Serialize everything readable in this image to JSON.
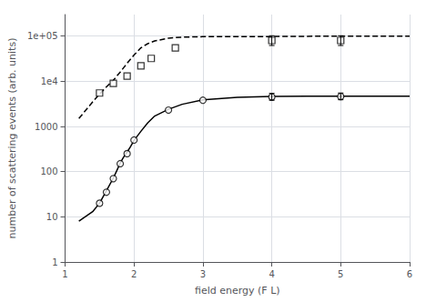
{
  "chart_data": {
    "type": "line",
    "xlabel": "field energy (F L)",
    "ylabel": "number of scattering events (arb. units)",
    "xlim": [
      1,
      6
    ],
    "xticks": [
      1,
      2,
      3,
      4,
      5,
      6
    ],
    "ylim": [
      1,
      300000
    ],
    "yticks": [
      1,
      10,
      100,
      1000,
      {
        "value": 10000,
        "label": "1e4"
      },
      {
        "value": 100000,
        "label": "1e+05"
      }
    ],
    "log": "y",
    "grid": true,
    "series": [
      {
        "type": "line",
        "line_style": "solid",
        "color": "#000000",
        "x": [
          1.2,
          1.4,
          1.5,
          1.6,
          1.7,
          1.75,
          1.8,
          1.85,
          1.9,
          1.95,
          2.0,
          2.1,
          2.2,
          2.3,
          2.5,
          2.7,
          3.0,
          3.5,
          4.0,
          4.5,
          5.0,
          5.5,
          6.0
        ],
        "values": [
          8,
          13,
          20,
          38,
          72,
          105,
          155,
          210,
          270,
          360,
          490,
          780,
          1200,
          1700,
          2400,
          3100,
          3900,
          4400,
          4600,
          4700,
          4700,
          4700,
          4700
        ]
      },
      {
        "type": "line",
        "line_style": "dashed",
        "color": "#000000",
        "x": [
          1.2,
          1.4,
          1.5,
          1.6,
          1.7,
          1.75,
          1.8,
          1.85,
          1.9,
          1.95,
          2.0,
          2.1,
          2.2,
          2.3,
          2.5,
          2.7,
          3.0,
          3.5,
          4.0,
          4.5,
          5.0,
          5.5,
          6.0
        ],
        "values": [
          1500,
          3500,
          5200,
          7500,
          10500,
          13000,
          16000,
          20000,
          25000,
          31000,
          38000,
          55000,
          68000,
          78000,
          90000,
          95000,
          97000,
          98000,
          98000,
          99000,
          100000,
          100000,
          100000
        ]
      },
      {
        "type": "scatter",
        "marker": "circle",
        "color": "#000000",
        "x": [
          1.5,
          1.6,
          1.7,
          1.8,
          1.9,
          2.0,
          2.5,
          3.0,
          4.0,
          5.0
        ],
        "values": [
          20,
          35,
          70,
          150,
          250,
          500,
          2300,
          3800,
          4500,
          4600
        ],
        "error_x": [
          4.0,
          5.0
        ],
        "error_y": [
          4500,
          4600
        ],
        "error_minus": [
          700,
          700
        ],
        "error_plus": [
          900,
          900
        ]
      },
      {
        "type": "scatter",
        "marker": "square",
        "color": "#000000",
        "x": [
          1.5,
          1.7,
          1.9,
          2.1,
          2.25,
          2.6,
          4.0,
          5.0
        ],
        "values": [
          5500,
          9000,
          13000,
          22000,
          32000,
          55000,
          80000,
          80000
        ],
        "error_x": [
          4.0,
          5.0
        ],
        "error_y": [
          80000,
          80000
        ],
        "error_minus": [
          18000,
          18000
        ],
        "error_plus": [
          22000,
          22000
        ]
      }
    ]
  }
}
